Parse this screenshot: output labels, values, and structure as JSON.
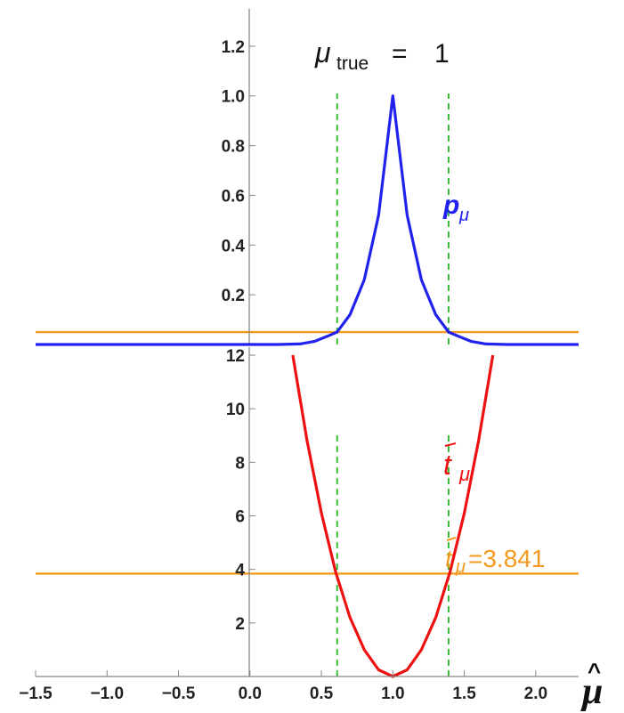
{
  "chart_data": [
    {
      "type": "line",
      "title": {
        "symbol": "μ",
        "subscript": "true",
        "equals": "=",
        "value": "1"
      },
      "xlabel": "μ̂",
      "x_ticks": [
        -1.5,
        -1.0,
        -0.5,
        0.0,
        0.5,
        1.0,
        1.5,
        2.0
      ],
      "x_tick_labels": [
        "−1.5",
        "−1.0",
        "−0.5",
        "0.0",
        "0.5",
        "1.0",
        "1.5",
        "2.0"
      ],
      "xlim": [
        -1.5,
        2.3
      ],
      "ylim": [
        0,
        1.35
      ],
      "y_ticks": [
        0.2,
        0.4,
        0.6,
        0.8,
        1.0,
        1.2
      ],
      "y_tick_labels": [
        "0.2",
        "0.4",
        "0.6",
        "0.8",
        "1.0",
        "1.2"
      ],
      "series": [
        {
          "name": "pμ",
          "label_main": "p",
          "label_sub": "μ",
          "color": "#2222ee",
          "x": [
            -1.5,
            0.2,
            0.35,
            0.45,
            0.55,
            0.61,
            0.7,
            0.8,
            0.9,
            1.0,
            1.1,
            1.2,
            1.3,
            1.39,
            1.45,
            1.55,
            1.65,
            1.8,
            2.3
          ],
          "y": [
            0.0,
            0.0,
            0.002,
            0.012,
            0.035,
            0.05,
            0.12,
            0.26,
            0.52,
            1.0,
            0.52,
            0.26,
            0.12,
            0.05,
            0.035,
            0.012,
            0.002,
            0.0,
            0.0
          ]
        }
      ],
      "hlines": [
        {
          "y": 0.05,
          "color": "#f39a1e"
        }
      ],
      "vlines": [
        {
          "x": 0.61,
          "color": "#22bb22",
          "style": "dashed"
        },
        {
          "x": 1.39,
          "color": "#22bb22",
          "style": "dashed"
        }
      ]
    },
    {
      "type": "line",
      "x_ticks": [
        -1.5,
        -1.0,
        -0.5,
        0.0,
        0.5,
        1.0,
        1.5,
        2.0
      ],
      "xlim": [
        -1.5,
        2.3
      ],
      "ylim": [
        0,
        12.3
      ],
      "y_ticks": [
        2,
        4,
        6,
        8,
        10,
        12
      ],
      "y_tick_labels": [
        "2",
        "4",
        "6",
        "8",
        "10",
        "12"
      ],
      "series": [
        {
          "name": "t̃μ",
          "label_main": "t",
          "label_sub": "μ",
          "color": "#ee1111",
          "x": [
            0.3,
            0.4,
            0.5,
            0.6,
            0.7,
            0.8,
            0.9,
            1.0,
            1.1,
            1.2,
            1.3,
            1.4,
            1.5,
            1.6,
            1.7
          ],
          "y": [
            12.0,
            8.8,
            6.1,
            3.9,
            2.2,
            1.0,
            0.25,
            0.0,
            0.25,
            1.0,
            2.2,
            3.9,
            6.1,
            8.8,
            12.0
          ]
        }
      ],
      "hlines": [
        {
          "y": 3.841,
          "color": "#f39a1e",
          "label_main": "t",
          "label_sub": "μ",
          "label_value": "=3.841"
        }
      ],
      "vlines": [
        {
          "x": 0.61,
          "color": "#22bb22",
          "style": "dashed"
        },
        {
          "x": 1.39,
          "color": "#22bb22",
          "style": "dashed"
        }
      ]
    }
  ]
}
